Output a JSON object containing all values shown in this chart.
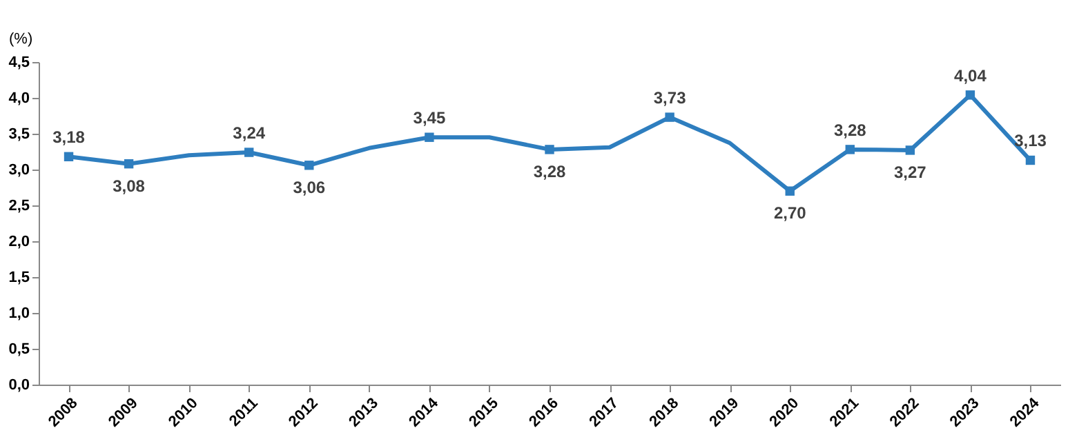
{
  "chart_data": {
    "type": "line",
    "ylabel": "(%)",
    "categories": [
      "2008",
      "2009",
      "2010",
      "2011",
      "2012",
      "2013",
      "2014",
      "2015",
      "2016",
      "2017",
      "2018",
      "2019",
      "2020",
      "2021",
      "2022",
      "2023",
      "2024"
    ],
    "series": [
      {
        "color": "#2e7ebf",
        "values": [
          3.18,
          3.08,
          3.2,
          3.24,
          3.06,
          3.3,
          3.45,
          3.45,
          3.28,
          3.31,
          3.73,
          3.37,
          2.7,
          3.28,
          3.27,
          4.04,
          3.13
        ],
        "value_labels": [
          "3,18",
          "3,08",
          null,
          "3,24",
          "3,06",
          null,
          "3,45",
          null,
          "3,28",
          null,
          "3,73",
          null,
          "2,70",
          "3,28",
          "3,27",
          "4,04",
          "3,13"
        ]
      }
    ],
    "ylim": [
      0,
      4.5
    ],
    "yticks": [
      {
        "value": 0,
        "label": "0,0"
      },
      {
        "value": 0.5,
        "label": "0,5"
      },
      {
        "value": 1,
        "label": "1,0"
      },
      {
        "value": 1.5,
        "label": "1,5"
      },
      {
        "value": 2,
        "label": "2,0"
      },
      {
        "value": 2.5,
        "label": "2,5"
      },
      {
        "value": 3,
        "label": "3,0"
      },
      {
        "value": 3.5,
        "label": "3,5"
      },
      {
        "value": 4,
        "label": "4,0"
      },
      {
        "value": 4.5,
        "label": "4,5"
      }
    ],
    "grid": false,
    "marker": "square",
    "line_style": "solid"
  }
}
